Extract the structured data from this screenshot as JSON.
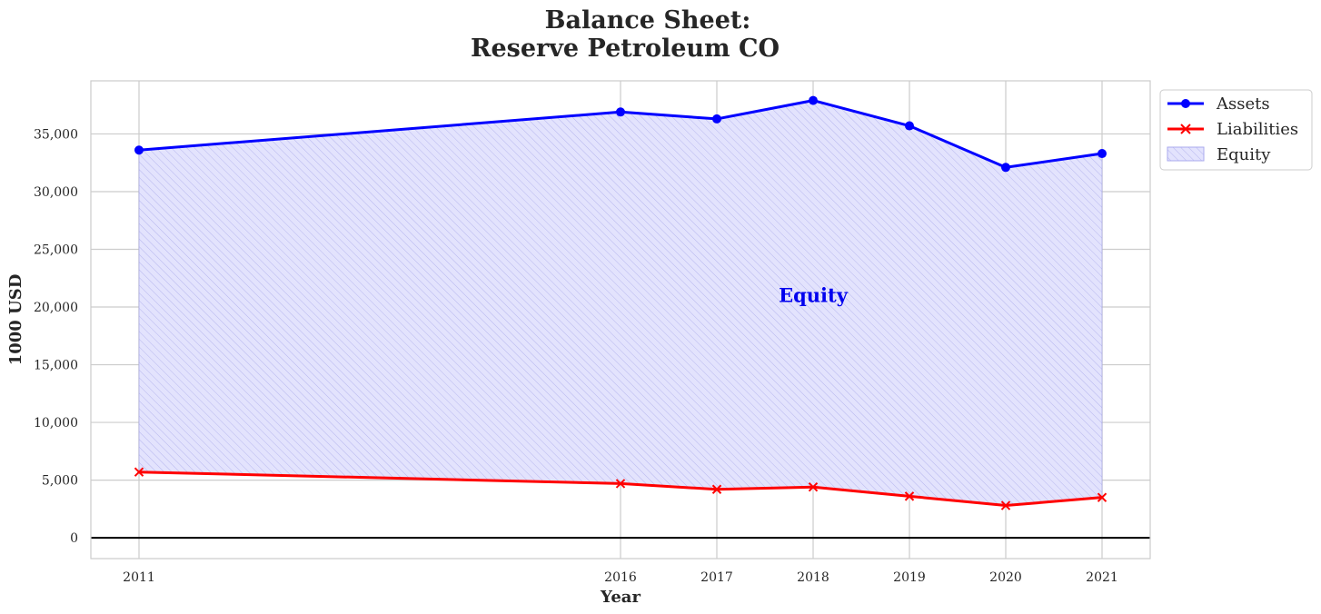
{
  "chart_data": {
    "type": "line",
    "title_line1": "Balance Sheet:",
    "title_line2": "Reserve Petroleum CO",
    "xlabel": "Year",
    "ylabel": "1000 USD",
    "x": [
      2011,
      2016,
      2017,
      2018,
      2019,
      2020,
      2021
    ],
    "xlim": [
      2010.5,
      2021.5
    ],
    "ylim": [
      -1800,
      39600
    ],
    "yticks": [
      0,
      5000,
      10000,
      15000,
      20000,
      25000,
      30000,
      35000
    ],
    "ytick_labels": [
      "0",
      "5,000",
      "10,000",
      "15,000",
      "20,000",
      "25,000",
      "30,000",
      "35,000"
    ],
    "xtick_labels": [
      "2011",
      "2016",
      "2017",
      "2018",
      "2019",
      "2020",
      "2021"
    ],
    "series": [
      {
        "name": "Assets",
        "values": [
          33600,
          36900,
          36300,
          37900,
          35700,
          32100,
          33300
        ],
        "color": "#0000ff",
        "marker": "circle"
      },
      {
        "name": "Liabilities",
        "values": [
          5700,
          4700,
          4200,
          4400,
          3600,
          2800,
          3500
        ],
        "color": "#ff0000",
        "marker": "x"
      }
    ],
    "fill": {
      "name": "Equity",
      "between": [
        "Assets",
        "Liabilities"
      ],
      "color": "#0000ff",
      "hatch": "////"
    },
    "annotation": {
      "text": "Equity",
      "x": 2018,
      "y": 21000,
      "color": "#0000ee"
    },
    "legend": {
      "placement": "outside-top-right",
      "entries": [
        "Assets",
        "Liabilities",
        "Equity"
      ]
    },
    "grid": true,
    "zero_line": true
  }
}
